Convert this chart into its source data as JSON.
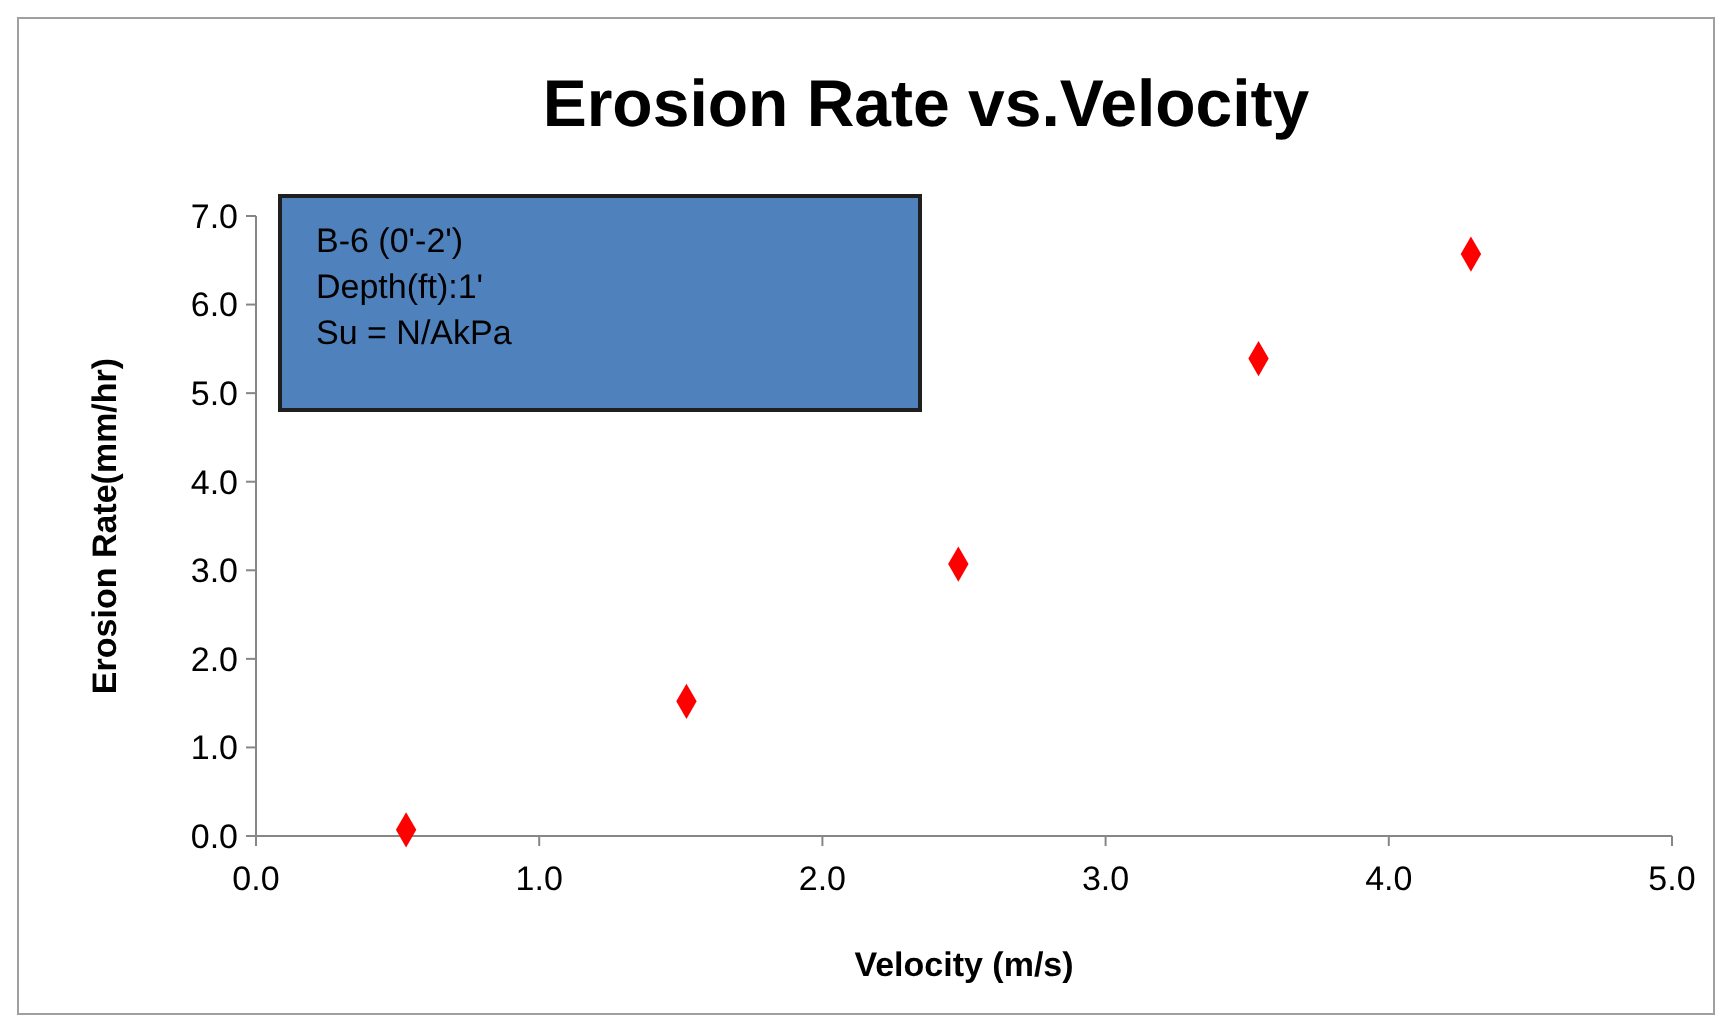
{
  "chart_data": {
    "type": "scatter",
    "title": "Erosion Rate vs.Velocity",
    "xlabel": "Velocity (m/s)",
    "ylabel": "Erosion Rate(mm/hr)",
    "x": [
      0.53,
      1.52,
      2.48,
      3.54,
      4.29
    ],
    "series": [
      {
        "color": "#ff0000",
        "values": [
          0.07,
          1.52,
          3.07,
          5.39,
          6.57
        ]
      }
    ],
    "xlim": [
      0,
      5
    ],
    "xticks": [
      {
        "value": 0,
        "label": "0.0"
      },
      {
        "value": 1,
        "label": "1.0"
      },
      {
        "value": 2,
        "label": "2.0"
      },
      {
        "value": 3,
        "label": "3.0"
      },
      {
        "value": 4,
        "label": "4.0"
      },
      {
        "value": 5,
        "label": "5.0"
      }
    ],
    "ylim": [
      0,
      7
    ],
    "yticks": [
      {
        "value": 0,
        "label": "0.0"
      },
      {
        "value": 1,
        "label": "1.0"
      },
      {
        "value": 2,
        "label": "2.0"
      },
      {
        "value": 3,
        "label": "3.0"
      },
      {
        "value": 4,
        "label": "4.0"
      },
      {
        "value": 5,
        "label": "5.0"
      },
      {
        "value": 6,
        "label": "6.0"
      },
      {
        "value": 7,
        "label": "7.0"
      }
    ],
    "marker": "diamond",
    "grid": false,
    "annotations": [
      "B-6 (0'-2')",
      "Depth(ft):1'",
      "Su = N/AkPa"
    ]
  }
}
